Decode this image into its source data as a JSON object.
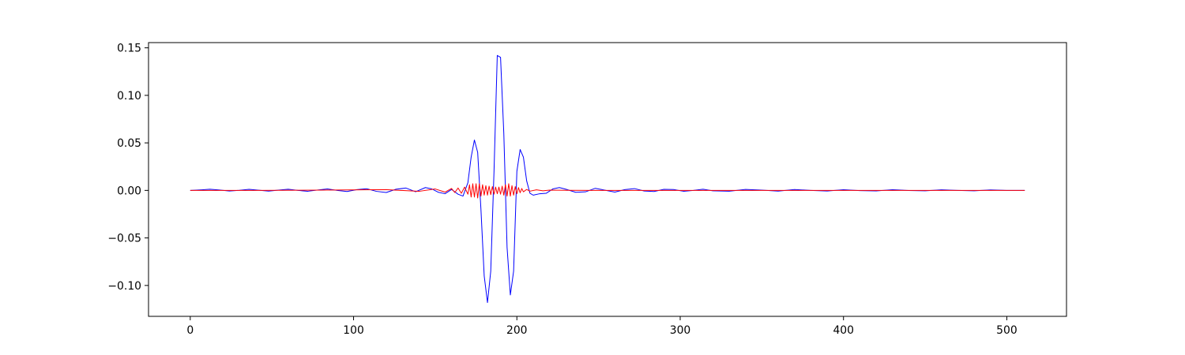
{
  "chart_data": {
    "type": "line",
    "title": "",
    "xlabel": "",
    "ylabel": "",
    "xlim": [
      -25.55,
      536.55
    ],
    "ylim": [
      -0.1325,
      0.1555
    ],
    "grid": false,
    "legend": "none",
    "xticks": [
      0,
      100,
      200,
      300,
      400,
      500
    ],
    "xtick_labels": [
      "0",
      "100",
      "200",
      "300",
      "400",
      "500"
    ],
    "yticks": [
      -0.1,
      -0.05,
      0.0,
      0.05,
      0.1,
      0.15
    ],
    "ytick_labels": [
      "−0.10",
      "−0.05",
      "0.00",
      "0.05",
      "0.10",
      "0.15"
    ],
    "series": [
      {
        "color": "#0000ff",
        "x": [
          0,
          6,
          12,
          18,
          24,
          30,
          36,
          42,
          48,
          54,
          60,
          66,
          72,
          78,
          84,
          90,
          96,
          102,
          108,
          114,
          120,
          126,
          132,
          138,
          144,
          148,
          152,
          156,
          160,
          164,
          167,
          170,
          172,
          174,
          176,
          178,
          180,
          182,
          184,
          186,
          188,
          190,
          192,
          194,
          196,
          198,
          200,
          202,
          204,
          206,
          208,
          210,
          214,
          218,
          222,
          226,
          230,
          236,
          242,
          248,
          254,
          260,
          266,
          272,
          278,
          284,
          290,
          296,
          302,
          308,
          314,
          320,
          330,
          340,
          350,
          360,
          370,
          380,
          390,
          400,
          410,
          420,
          430,
          440,
          450,
          460,
          470,
          480,
          490,
          500,
          511
        ],
        "y": [
          0.0,
          0.0005,
          0.0012,
          0.0004,
          -0.0006,
          0.0001,
          0.0011,
          0.0002,
          -0.0007,
          0.0003,
          0.0012,
          0.0,
          -0.0009,
          0.0004,
          0.0015,
          0.0,
          -0.0012,
          0.0008,
          0.0018,
          -0.001,
          -0.0022,
          0.0012,
          0.0025,
          -0.0014,
          0.003,
          0.0015,
          -0.002,
          -0.0035,
          0.001,
          -0.004,
          -0.006,
          0.008,
          0.035,
          0.053,
          0.04,
          -0.02,
          -0.09,
          -0.118,
          -0.085,
          0.02,
          0.142,
          0.14,
          0.06,
          -0.06,
          -0.11,
          -0.085,
          0.02,
          0.043,
          0.035,
          0.01,
          -0.003,
          -0.005,
          -0.0035,
          -0.003,
          0.0015,
          0.003,
          0.0012,
          -0.002,
          -0.0015,
          0.0022,
          0.0002,
          -0.0018,
          0.0008,
          0.0019,
          -0.0006,
          -0.0012,
          0.0011,
          0.0009,
          -0.0009,
          0.0,
          0.0012,
          -0.0004,
          -0.0008,
          0.001,
          0.0003,
          -0.0007,
          0.0009,
          0.0,
          -0.0006,
          0.0007,
          -0.0002,
          -0.0005,
          0.0007,
          -0.0001,
          -0.0004,
          0.0006,
          0.0,
          -0.0004,
          0.0005,
          0.0,
          0.0
        ]
      },
      {
        "color": "#ff0000",
        "x": [
          0,
          40,
          80,
          120,
          140,
          150,
          156,
          160,
          162,
          164,
          166,
          168,
          170,
          171,
          172,
          173,
          174,
          175,
          176,
          177,
          178,
          179,
          180,
          181,
          182,
          183,
          184,
          185,
          186,
          187,
          188,
          189,
          190,
          191,
          192,
          193,
          194,
          195,
          196,
          197,
          198,
          199,
          200,
          201,
          202,
          203,
          204,
          206,
          208,
          212,
          216,
          220,
          230,
          250,
          300,
          400,
          511
        ],
        "y": [
          0.0,
          0.0,
          0.0003,
          0.0008,
          -0.001,
          0.0015,
          -0.0018,
          0.002,
          -0.0022,
          0.0025,
          -0.003,
          0.0035,
          -0.004,
          0.006,
          -0.007,
          0.007,
          -0.007,
          0.007,
          -0.008,
          0.007,
          -0.006,
          0.006,
          -0.005,
          0.005,
          -0.005,
          0.0045,
          -0.0045,
          0.004,
          -0.004,
          0.0035,
          -0.0035,
          0.0035,
          -0.004,
          0.0045,
          -0.005,
          0.006,
          -0.006,
          0.007,
          -0.006,
          0.005,
          -0.005,
          0.004,
          -0.0035,
          0.003,
          -0.0025,
          0.002,
          -0.0015,
          0.001,
          -0.0008,
          0.0006,
          -0.0004,
          0.0003,
          0.0001,
          0.0,
          0.0,
          0.0,
          0.0
        ]
      }
    ]
  }
}
